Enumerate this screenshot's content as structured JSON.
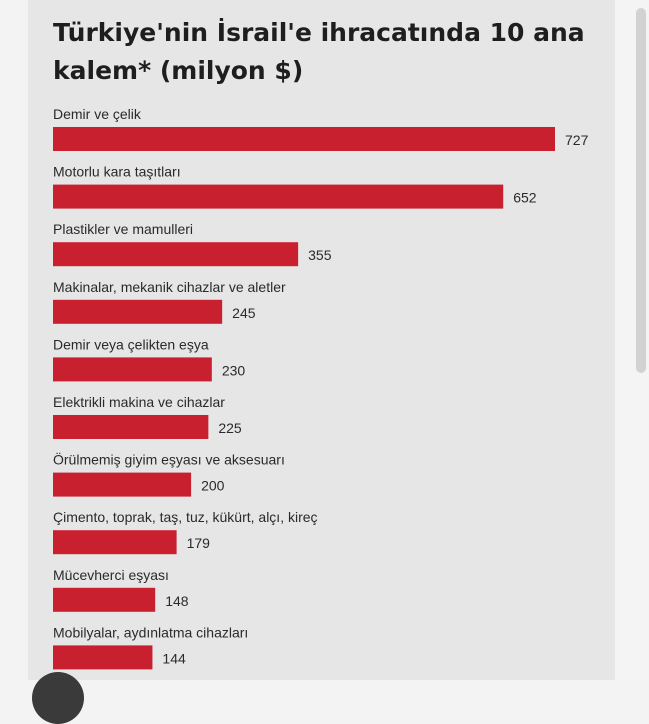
{
  "chart_data": {
    "type": "bar",
    "orientation": "horizontal",
    "title": "Türkiye'nin İsrail'e ihracatında 10 ana kalem* (milyon $)",
    "categories": [
      "Demir ve çelik",
      "Motorlu kara taşıtları",
      "Plastikler ve mamulleri",
      "Makinalar, mekanik cihazlar ve aletler",
      "Demir veya çelikten eşya",
      "Elektrikli makina ve cihazlar",
      "Örülmemiş giyim eşyası ve aksesuarı",
      "Çimento, toprak, taş, tuz, kükürt, alçı, kireç",
      "Mücevherci eşyası",
      "Mobilyalar, aydınlatma cihazları"
    ],
    "values": [
      727,
      652,
      355,
      245,
      230,
      225,
      200,
      179,
      148,
      144
    ],
    "value_labels": [
      "727",
      "652",
      "355",
      "245",
      "230",
      "225",
      "200",
      "179",
      "148",
      "144"
    ],
    "xlim": [
      0,
      727
    ],
    "grid": false,
    "bar_color": "#c8202f"
  }
}
